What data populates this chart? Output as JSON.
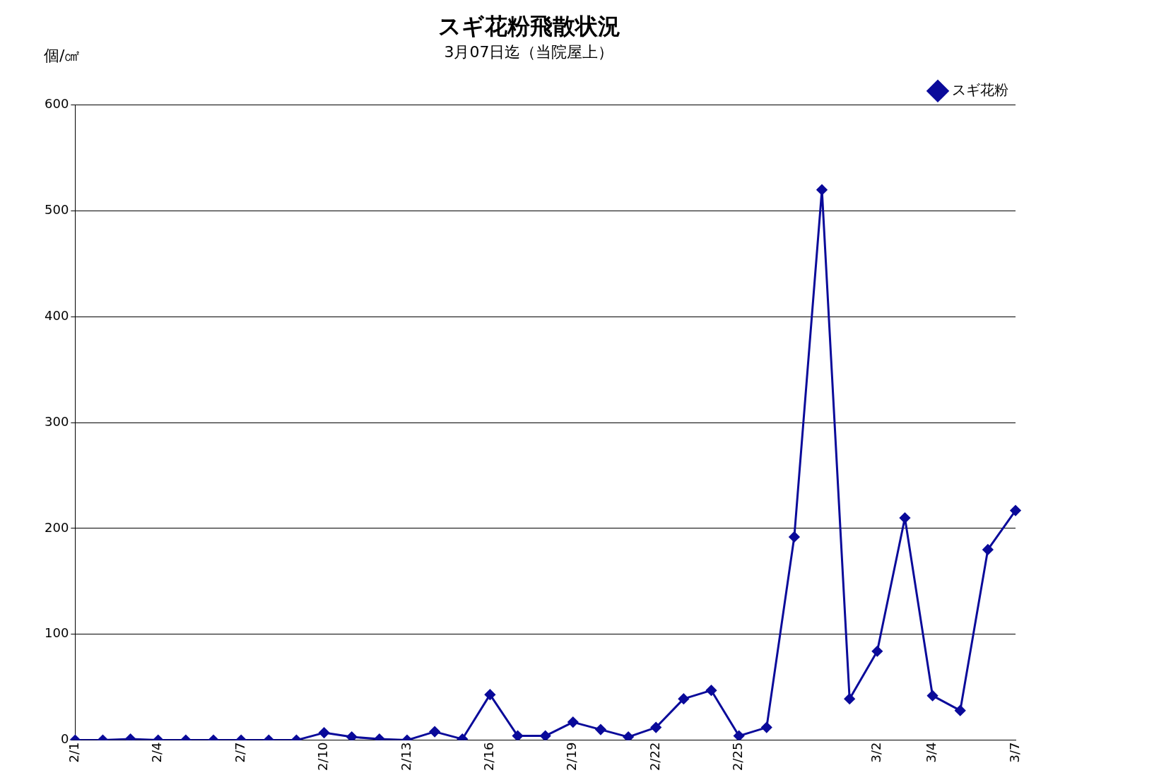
{
  "chart_data": {
    "type": "line",
    "title": "スギ花粉飛散状況",
    "subtitle": "3月07日迄（当院屋上）",
    "ylabel": "個/㎠",
    "categories": [
      "2/1",
      null,
      null,
      "2/4",
      null,
      null,
      "2/7",
      null,
      null,
      "2/10",
      null,
      null,
      "2/13",
      null,
      null,
      "2/16",
      null,
      null,
      "2/19",
      null,
      null,
      "2/22",
      null,
      null,
      "2/25",
      null,
      null,
      null,
      null,
      "3/2",
      null,
      "3/4",
      null,
      null,
      "3/7"
    ],
    "series": [
      {
        "name": "スギ花粉",
        "color": "#0a0a9a",
        "values": [
          0,
          0,
          1,
          0,
          0,
          0,
          0,
          0,
          0,
          7,
          3,
          1,
          0,
          8,
          1,
          43,
          4,
          4,
          17,
          10,
          3,
          12,
          39,
          47,
          4,
          12,
          192,
          520,
          39,
          84,
          210,
          42,
          28,
          180,
          217
        ]
      }
    ],
    "ylim": [
      0,
      600
    ],
    "yticks": [
      0,
      100,
      200,
      300,
      400,
      500,
      600
    ],
    "grid": "y",
    "legend": "top right",
    "marker": "diamond",
    "line_style": "solid"
  }
}
